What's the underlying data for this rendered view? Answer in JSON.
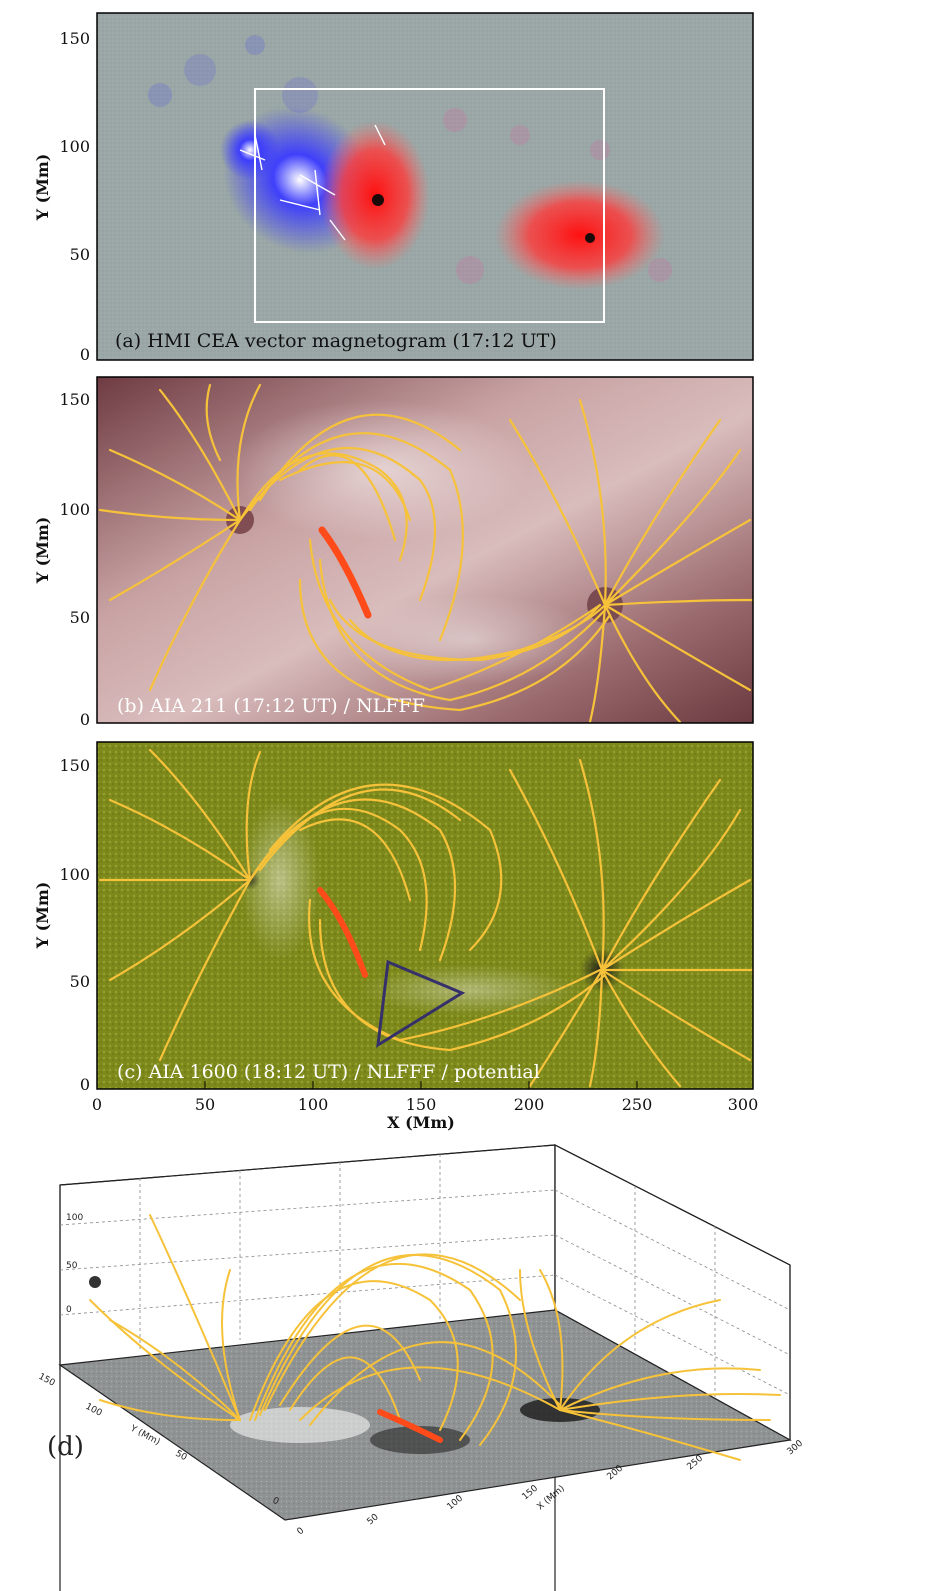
{
  "panels": [
    {
      "id": "a",
      "label": "(a) HMI CEA vector magnetogram (17:12 UT)"
    },
    {
      "id": "b",
      "label": "(b) AIA 211 (17:12 UT) / NLFFF"
    },
    {
      "id": "c",
      "label": "(c) AIA 1600 (18:12 UT) / NLFFF / potential"
    },
    {
      "id": "d",
      "label": "(d)"
    }
  ],
  "axes": {
    "y_label": "Y (Mm)",
    "x_label": "X (Mm)",
    "y_ticks": [
      "0",
      "50",
      "100",
      "150"
    ],
    "x_ticks": [
      "0",
      "50",
      "100",
      "150",
      "200",
      "250",
      "300"
    ]
  },
  "panel_d_axes": {
    "z_ticks": [
      "0",
      "50",
      "100"
    ],
    "y_label": "Y (Mm)",
    "y_ticks": [
      "0",
      "50",
      "100",
      "150"
    ],
    "x_label": "X (Mm)",
    "x_ticks": [
      "0",
      "50",
      "100",
      "150",
      "200",
      "250",
      "300"
    ]
  },
  "colors": {
    "magnetogram_bg": "#9aa7a6",
    "positive": "#ff2a2a",
    "negative": "#2b2bff",
    "aia211_bg": "#8c5a5e",
    "aia1600_bg": "#7f8a1c",
    "fieldline": "#f6c23a",
    "flux_rope": "#ff4a1a",
    "triangle": "#35306a"
  }
}
